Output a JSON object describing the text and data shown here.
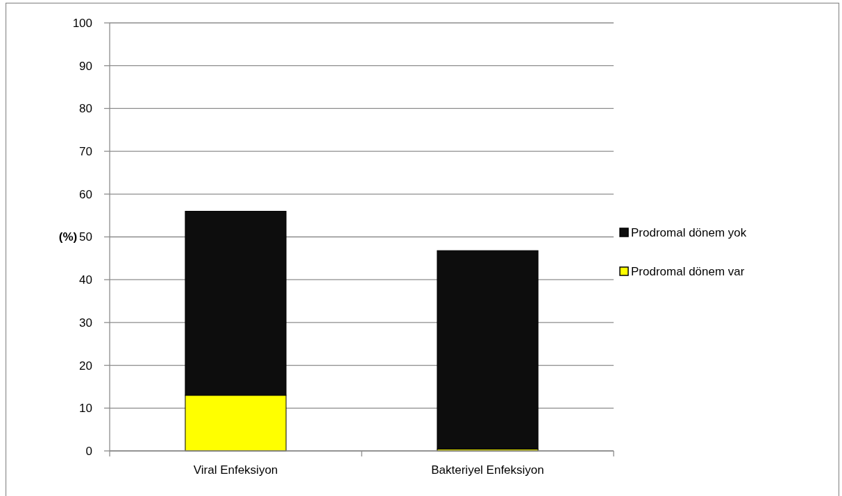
{
  "chart_data": {
    "type": "bar",
    "ylabel": "(%)",
    "categories": [
      "Viral Enfeksiyon",
      "Bakteriyel Enfeksiyon"
    ],
    "series": [
      {
        "name": "Prodromal dönem var",
        "color": "#ffff00",
        "values": [
          13,
          0.4
        ]
      },
      {
        "name": "Prodromal dönem yok",
        "color": "#0d0d0d",
        "values": [
          43,
          46.4
        ]
      }
    ],
    "stacked": true,
    "ylim": [
      0,
      100
    ],
    "yticks": [
      0,
      10,
      20,
      30,
      40,
      50,
      60,
      70,
      80,
      90,
      100
    ],
    "grid": "y",
    "legend": "right"
  }
}
